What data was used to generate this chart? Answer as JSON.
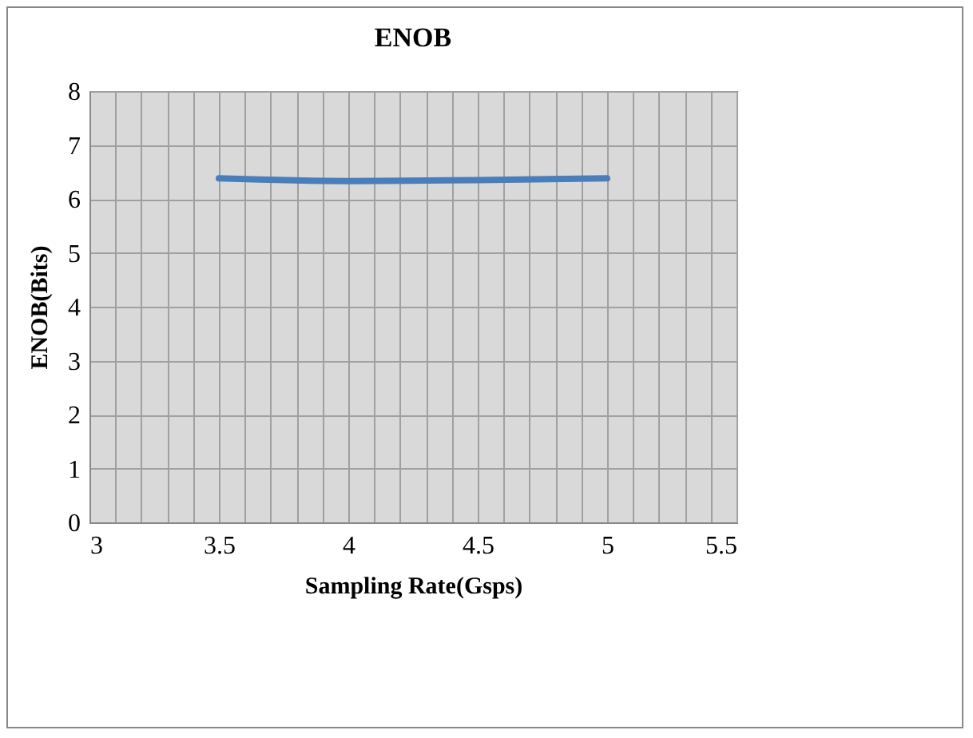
{
  "chart_data": {
    "type": "line",
    "title": "ENOB",
    "xlabel": "Sampling Rate(Gsps)",
    "ylabel": "ENOB(Bits)",
    "x": [
      3.5,
      4,
      4.5,
      5
    ],
    "series": [
      {
        "color": "#4a7ebb",
        "values": [
          6.38,
          6.33,
          6.35,
          6.38
        ]
      }
    ],
    "xlim": [
      3,
      5.5
    ],
    "xticks": [
      3,
      {
        "value": 3.1,
        "label": null
      },
      {
        "value": 3.2,
        "label": null
      },
      {
        "value": 3.3,
        "label": null
      },
      {
        "value": 3.4,
        "label": null
      },
      3.5,
      {
        "value": 3.6,
        "label": null
      },
      {
        "value": 3.7,
        "label": null
      },
      {
        "value": 3.8,
        "label": null
      },
      {
        "value": 3.9,
        "label": null
      },
      4,
      {
        "value": 4.1,
        "label": null
      },
      {
        "value": 4.2,
        "label": null
      },
      {
        "value": 4.3,
        "label": null
      },
      {
        "value": 4.4,
        "label": null
      },
      4.5,
      {
        "value": 4.6,
        "label": null
      },
      {
        "value": 4.7,
        "label": null
      },
      {
        "value": 4.8,
        "label": null
      },
      {
        "value": 4.9,
        "label": null
      },
      5,
      {
        "value": 5.1,
        "label": null
      },
      {
        "value": 5.2,
        "label": null
      },
      {
        "value": 5.3,
        "label": null
      },
      {
        "value": 5.4,
        "label": null
      },
      5.5
    ],
    "ylim": [
      0,
      8
    ],
    "yticks": [
      0,
      1,
      2,
      3,
      4,
      5,
      6,
      7,
      8
    ],
    "grid": true,
    "marker": "none",
    "line_style": "solid"
  }
}
